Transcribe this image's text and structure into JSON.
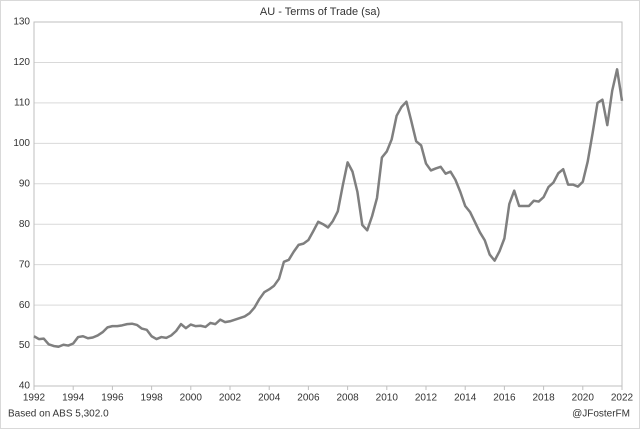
{
  "chart_data": {
    "type": "line",
    "title": "AU - Terms of Trade (sa)",
    "source": "Based on ABS 5,302.0",
    "credit": "@JFosterFM",
    "color": "#7f7f7f",
    "grid": true,
    "xlim": [
      1992,
      2022
    ],
    "xticks": [
      1992,
      1994,
      1996,
      1998,
      2000,
      2002,
      2004,
      2006,
      2008,
      2010,
      2012,
      2014,
      2016,
      2018,
      2020,
      2022
    ],
    "ylim": [
      40,
      130
    ],
    "yticks": [
      40,
      50,
      60,
      70,
      80,
      90,
      100,
      110,
      120,
      130
    ],
    "x": [
      1992,
      1992.25,
      1992.5,
      1992.75,
      1993,
      1993.25,
      1993.5,
      1993.75,
      1994,
      1994.25,
      1994.5,
      1994.75,
      1995,
      1995.25,
      1995.5,
      1995.75,
      1996,
      1996.25,
      1996.5,
      1996.75,
      1997,
      1997.25,
      1997.5,
      1997.75,
      1998,
      1998.25,
      1998.5,
      1998.75,
      1999,
      1999.25,
      1999.5,
      1999.75,
      2000,
      2000.25,
      2000.5,
      2000.75,
      2001,
      2001.25,
      2001.5,
      2001.75,
      2002,
      2002.25,
      2002.5,
      2002.75,
      2003,
      2003.25,
      2003.5,
      2003.75,
      2004,
      2004.25,
      2004.5,
      2004.75,
      2005,
      2005.25,
      2005.5,
      2005.75,
      2006,
      2006.25,
      2006.5,
      2006.75,
      2007,
      2007.25,
      2007.5,
      2007.75,
      2008,
      2008.25,
      2008.5,
      2008.75,
      2009,
      2009.25,
      2009.5,
      2009.75,
      2010,
      2010.25,
      2010.5,
      2010.75,
      2011,
      2011.25,
      2011.5,
      2011.75,
      2012,
      2012.25,
      2012.5,
      2012.75,
      2013,
      2013.25,
      2013.5,
      2013.75,
      2014,
      2014.25,
      2014.5,
      2014.75,
      2015,
      2015.25,
      2015.5,
      2015.75,
      2016,
      2016.25,
      2016.5,
      2016.75,
      2017,
      2017.25,
      2017.5,
      2017.75,
      2018,
      2018.25,
      2018.5,
      2018.75,
      2019,
      2019.25,
      2019.5,
      2019.75,
      2020,
      2020.25,
      2020.5,
      2020.75,
      2021,
      2021.25,
      2021.5,
      2021.75,
      2022
    ],
    "values": [
      52.3,
      51.6,
      51.7,
      50.3,
      49.9,
      49.7,
      50.2,
      50.0,
      50.5,
      52.1,
      52.3,
      51.8,
      52.0,
      52.5,
      53.3,
      54.5,
      54.8,
      54.8,
      55.0,
      55.3,
      55.4,
      55.1,
      54.2,
      53.9,
      52.3,
      51.6,
      52.1,
      51.9,
      52.5,
      53.6,
      55.3,
      54.3,
      55.2,
      54.8,
      54.9,
      54.6,
      55.6,
      55.3,
      56.4,
      55.8,
      56.0,
      56.4,
      56.8,
      57.2,
      58.0,
      59.4,
      61.5,
      63.2,
      63.9,
      64.8,
      66.5,
      70.7,
      71.2,
      73.2,
      74.9,
      75.2,
      76.1,
      78.3,
      80.6,
      80.0,
      79.2,
      80.8,
      83.2,
      89.5,
      95.3,
      93.0,
      88.0,
      79.8,
      78.5,
      82.0,
      86.5,
      96.5,
      98.0,
      101.0,
      106.8,
      109.0,
      110.3,
      105.5,
      100.5,
      99.5,
      95.0,
      93.3,
      93.8,
      94.2,
      92.5,
      93.0,
      91.0,
      88.0,
      84.5,
      83.0,
      80.5,
      78.0,
      76.0,
      72.5,
      71.0,
      73.3,
      76.5,
      85.0,
      88.3,
      84.5,
      84.5,
      84.5,
      85.8,
      85.6,
      86.7,
      89.2,
      90.3,
      92.6,
      93.6,
      89.8,
      89.8,
      89.3,
      90.5,
      95.5,
      102.5,
      110.0,
      110.8,
      104.5,
      113.0,
      118.3,
      110.5
    ]
  }
}
